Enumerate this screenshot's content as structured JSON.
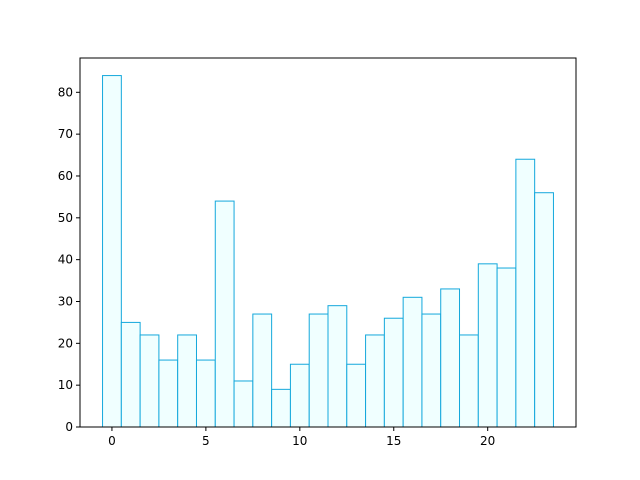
{
  "chart_data": {
    "type": "histogram",
    "bins": [
      -0.5,
      0.5,
      1.5,
      2.5,
      3.5,
      4.5,
      5.5,
      6.5,
      7.5,
      8.5,
      9.5,
      10.5,
      11.5,
      12.5,
      13.5,
      14.5,
      15.5,
      16.5,
      17.5,
      18.5,
      19.5,
      20.5,
      21.5,
      22.5,
      23.5
    ],
    "values": [
      84,
      25,
      22,
      16,
      22,
      16,
      54,
      11,
      27,
      9,
      15,
      27,
      29,
      15,
      22,
      26,
      31,
      27,
      33,
      22,
      39,
      38,
      64,
      56
    ],
    "color": "#f0ffff",
    "edgecolor": "#14a8dc",
    "xlim": [
      -1.7,
      24.7
    ],
    "xticks": [
      0,
      5,
      10,
      15,
      20
    ],
    "ylim": [
      0,
      88.2
    ],
    "yticks": [
      0,
      10,
      20,
      30,
      40,
      50,
      60,
      70,
      80
    ]
  }
}
